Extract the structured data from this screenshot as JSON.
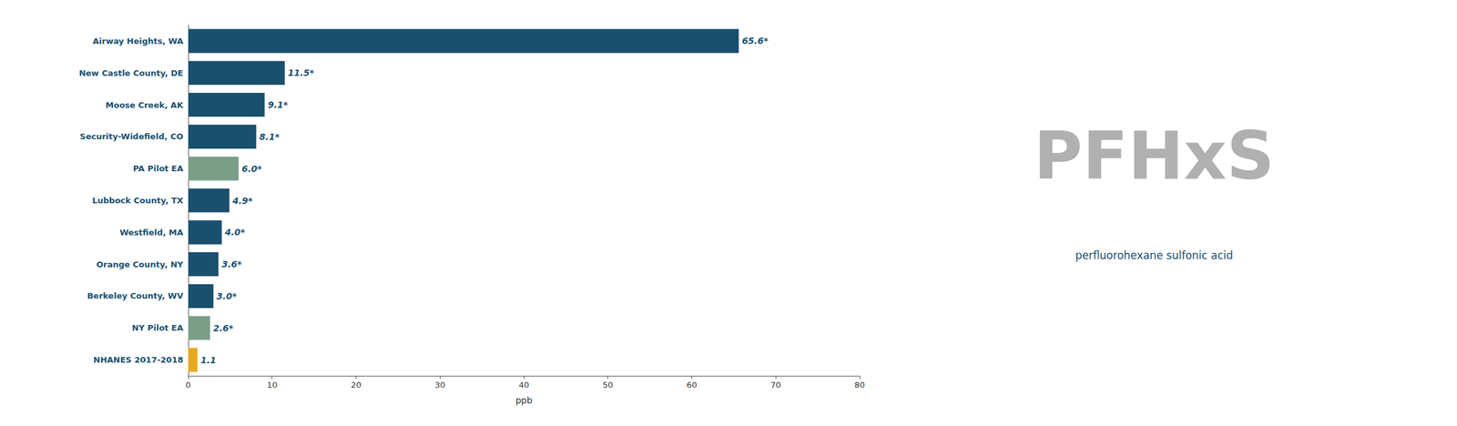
{
  "chart_data": {
    "type": "bar",
    "orientation": "horizontal",
    "title": "PFHxS",
    "subtitle": "perfluorohexane sulfonic acid",
    "categories": [
      "Airway Heights, WA",
      "New Castle County, DE",
      "Moose Creek, AK",
      "Security-Widefield, CO",
      "PA Pilot EA",
      "Lubbock County, TX",
      "Westfield, MA",
      "Orange County, NY",
      "Berkeley County, WV",
      "NY Pilot EA",
      "NHANES 2017-2018"
    ],
    "values": [
      65.6,
      11.5,
      9.1,
      8.1,
      6.0,
      4.9,
      4.0,
      3.6,
      3.0,
      2.6,
      1.1
    ],
    "value_labels": [
      "65.6*",
      "11.5*",
      "9.1*",
      "8.1*",
      "6.0*",
      "4.9*",
      "4.0*",
      "3.6*",
      "3.0*",
      "2.6*",
      "1.1"
    ],
    "data_labels": true,
    "colors": [
      "#1a4f6e",
      "#1a4f6e",
      "#1a4f6e",
      "#1a4f6e",
      "#7a9e87",
      "#1a4f6e",
      "#1a4f6e",
      "#1a4f6e",
      "#1a4f6e",
      "#7a9e87",
      "#e8a820"
    ],
    "xlabel": "ppb",
    "xlim": [
      0,
      80
    ],
    "xticks": [
      0,
      10,
      20,
      30,
      40,
      50,
      60,
      70,
      80
    ],
    "grid": false
  }
}
